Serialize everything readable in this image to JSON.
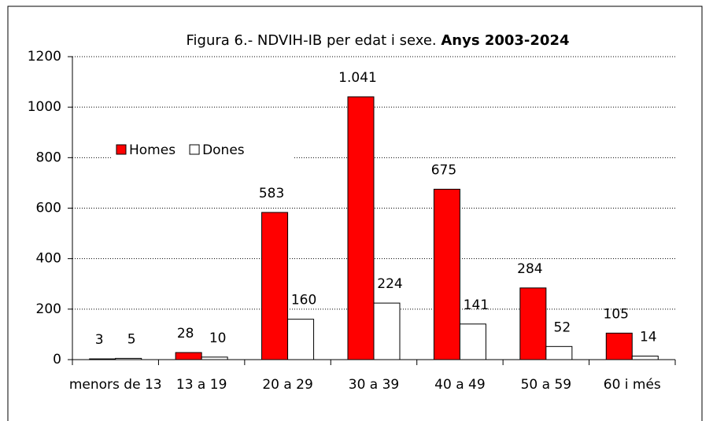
{
  "chart_data": {
    "type": "bar",
    "title_parts": [
      "Figura 6.- NDVIH-IB per edat i sexe.",
      "Anys 2003-2024"
    ],
    "categories": [
      "menors de 13",
      "13 a 19",
      "20 a 29",
      "30 a 39",
      "40 a 49",
      "50 a 59",
      "60 i més"
    ],
    "series": [
      {
        "name": "Homes",
        "color": "#ff0000",
        "values": [
          3,
          28,
          583,
          1041,
          675,
          284,
          105
        ],
        "value_labels": [
          "3",
          "28",
          "583",
          "1.041",
          "675",
          "284",
          "105"
        ]
      },
      {
        "name": "Dones",
        "color": "#ffffff",
        "values": [
          5,
          10,
          160,
          224,
          141,
          52,
          14
        ]
      }
    ],
    "ylim": [
      0,
      1200
    ],
    "yticks": [
      0,
      200,
      400,
      600,
      800,
      1000,
      1200
    ],
    "grid": true,
    "legend": "upper left"
  }
}
